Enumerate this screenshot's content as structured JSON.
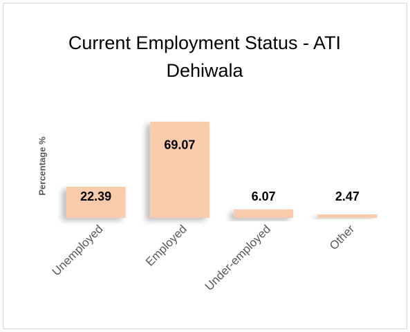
{
  "chart_data": {
    "type": "bar",
    "title": "Current Employment Status - ATI Dehiwala",
    "y_label": "Percentage %",
    "categories": [
      "Unemployed",
      "Employed",
      "Under-employed",
      "Other"
    ],
    "values": [
      22.39,
      69.07,
      6.07,
      2.47
    ],
    "color": "#f8cbad",
    "ylim": [
      0,
      80
    ],
    "grid": false
  }
}
